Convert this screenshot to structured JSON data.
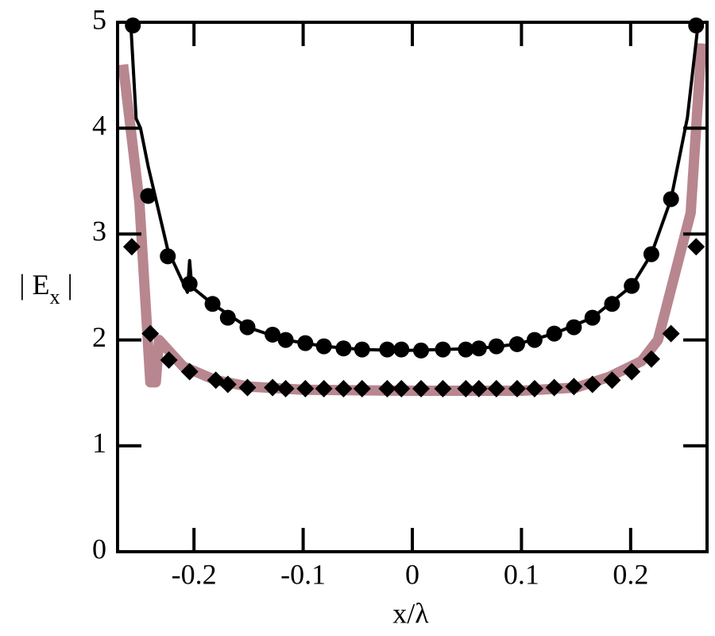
{
  "chart_data": {
    "type": "line",
    "xlabel": "x/λ",
    "ylabel_parts": [
      "| E",
      "x",
      " |"
    ],
    "xlim": [
      -0.27,
      0.27
    ],
    "ylim": [
      0,
      5
    ],
    "xticks": [
      -0.2,
      -0.1,
      0,
      0.1,
      0.2
    ],
    "yticks": [
      0,
      1,
      2,
      3,
      4,
      5
    ],
    "series": [
      {
        "style": "thick-line",
        "color": "#b8868f",
        "x": [
          -0.265,
          -0.25,
          -0.24,
          -0.235,
          -0.232,
          -0.21,
          -0.18,
          -0.15,
          -0.1,
          0,
          0.1,
          0.15,
          0.18,
          0.21,
          0.225,
          0.24,
          0.255,
          0.265
        ],
        "values": [
          4.6,
          3.3,
          1.6,
          1.6,
          2.0,
          1.75,
          1.62,
          1.56,
          1.53,
          1.52,
          1.52,
          1.55,
          1.65,
          1.8,
          2.0,
          2.6,
          3.2,
          4.8
        ]
      },
      {
        "style": "line",
        "color": "#000000",
        "x": [
          -0.258,
          -0.253,
          -0.249,
          -0.242,
          -0.224,
          -0.206,
          -0.204,
          -0.202,
          -0.183,
          -0.151,
          -0.116,
          -0.081,
          -0.046,
          -0.01,
          0.028,
          0.061,
          0.096,
          0.13,
          0.165,
          0.201,
          0.219,
          0.237,
          0.252,
          0.262
        ],
        "values": [
          5.0,
          4.09,
          4.0,
          3.64,
          2.85,
          2.45,
          2.75,
          2.5,
          2.34,
          2.12,
          2.0,
          1.94,
          1.91,
          1.9,
          1.91,
          1.92,
          1.96,
          2.06,
          2.21,
          2.51,
          2.81,
          3.33,
          4.1,
          5.0
        ]
      },
      {
        "style": "circle",
        "color": "#000000",
        "x": [
          -0.256,
          -0.242,
          -0.224,
          -0.204,
          -0.183,
          -0.169,
          -0.151,
          -0.128,
          -0.116,
          -0.098,
          -0.081,
          -0.063,
          -0.046,
          -0.023,
          -0.01,
          0.008,
          0.028,
          0.049,
          0.061,
          0.077,
          0.096,
          0.112,
          0.13,
          0.148,
          0.165,
          0.183,
          0.201,
          0.219,
          0.237,
          0.26
        ],
        "values": [
          4.97,
          3.36,
          2.79,
          2.53,
          2.34,
          2.21,
          2.12,
          2.05,
          2.0,
          1.97,
          1.94,
          1.92,
          1.91,
          1.91,
          1.91,
          1.9,
          1.91,
          1.91,
          1.92,
          1.94,
          1.96,
          2.0,
          2.06,
          2.12,
          2.21,
          2.34,
          2.51,
          2.81,
          3.33,
          4.97
        ]
      },
      {
        "style": "diamond",
        "color": "#000000",
        "x": [
          -0.257,
          -0.24,
          -0.223,
          -0.204,
          -0.18,
          -0.169,
          -0.151,
          -0.128,
          -0.116,
          -0.098,
          -0.081,
          -0.063,
          -0.046,
          -0.023,
          -0.01,
          0.008,
          0.028,
          0.049,
          0.061,
          0.077,
          0.096,
          0.112,
          0.13,
          0.148,
          0.165,
          0.183,
          0.201,
          0.219,
          0.237,
          0.26
        ],
        "values": [
          2.88,
          2.06,
          1.81,
          1.7,
          1.62,
          1.58,
          1.55,
          1.55,
          1.54,
          1.54,
          1.54,
          1.54,
          1.54,
          1.54,
          1.54,
          1.54,
          1.54,
          1.54,
          1.54,
          1.54,
          1.54,
          1.54,
          1.55,
          1.56,
          1.58,
          1.62,
          1.7,
          1.82,
          2.06,
          2.88
        ]
      }
    ]
  }
}
